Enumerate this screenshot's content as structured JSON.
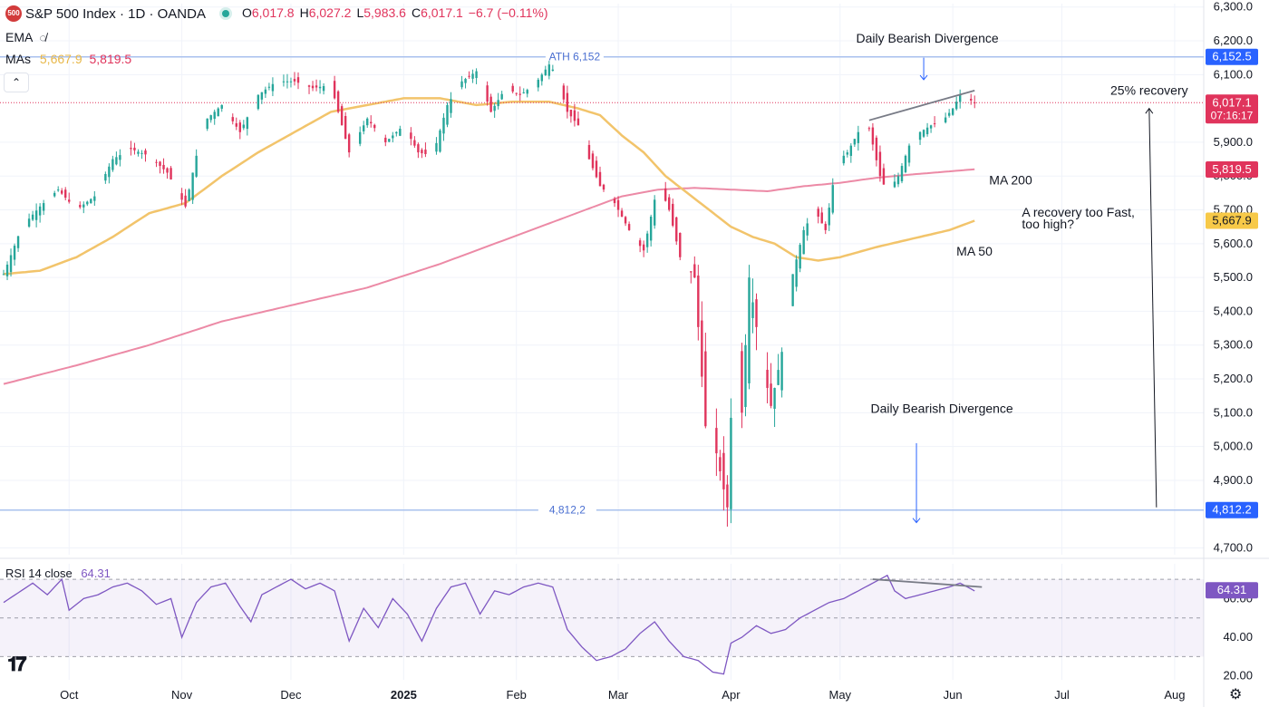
{
  "header": {
    "symbol_badge": "500",
    "title": "S&P 500 Index · 1D · OANDA",
    "ohlc": [
      {
        "label": "O",
        "value": "6,017.8"
      },
      {
        "label": "H",
        "value": "6,027.2"
      },
      {
        "label": "L",
        "value": "5,983.6"
      },
      {
        "label": "C",
        "value": "6,017.1"
      }
    ],
    "change": "−6.7 (−0.11%)",
    "ema_label": "EMA",
    "mas_label": "MAs",
    "ma50_value": "5,667.9",
    "ma200_value": "5,819.5",
    "rsi_label": "RSI 14 close",
    "rsi_value": "64.31"
  },
  "colors": {
    "up": "#26a69a",
    "down": "#e0345c",
    "ma50": "#f2c46b",
    "ma200": "#ec8aa6",
    "rsi_line": "#7e57c2",
    "level_line": "#a9c1ee",
    "badge_blue": "#2962ff",
    "badge_red": "#e0345c",
    "badge_yellow": "#f7c948",
    "badge_purple": "#7e57c2"
  },
  "chart_data": {
    "type": "candlestick",
    "price_axis": {
      "ticks": [
        "6,300.0",
        "6,200.0",
        "6,100.0",
        "5,900.0",
        "5,800.0",
        "5,700.0",
        "5,600.0",
        "5,500.0",
        "5,400.0",
        "5,300.0",
        "5,200.0",
        "5,100.0",
        "5,000.0",
        "4,900.0",
        "4,700.0"
      ],
      "tick_values": [
        6300,
        6200,
        6100,
        5900,
        5800,
        5700,
        5600,
        5500,
        5400,
        5300,
        5200,
        5100,
        5000,
        4900,
        4700
      ],
      "range": [
        4680,
        6310
      ]
    },
    "time_axis": {
      "labels": [
        {
          "text": "Oct",
          "day": 18
        },
        {
          "text": "Nov",
          "day": 49
        },
        {
          "text": "Dec",
          "day": 79
        },
        {
          "text": "2025",
          "day": 110,
          "bold": true
        },
        {
          "text": "Feb",
          "day": 141
        },
        {
          "text": "Mar",
          "day": 169
        },
        {
          "text": "Apr",
          "day": 200
        },
        {
          "text": "May",
          "day": 230
        },
        {
          "text": "Jun",
          "day": 261
        },
        {
          "text": "Jul",
          "day": 291
        },
        {
          "text": "Aug",
          "day": 322
        }
      ],
      "range_days": [
        -1,
        330
      ]
    },
    "price_badges": [
      {
        "value": "6,152.5",
        "price": 6152.5,
        "color": "blue"
      },
      {
        "value": "6,017.1",
        "price": 6017.1,
        "sub": "07:16:17",
        "color": "red"
      },
      {
        "value": "5,819.5",
        "price": 5819.5,
        "color": "red"
      },
      {
        "value": "5,667.9",
        "price": 5667.9,
        "color": "yellow"
      },
      {
        "value": "4,812.2",
        "price": 4812.2,
        "color": "blue"
      }
    ],
    "levels": [
      {
        "label": "ATH 6,152",
        "price": 6152.5
      },
      {
        "label": "4,812,2",
        "price": 4812.2
      }
    ],
    "annotations": {
      "div_top": "Daily Bearish Divergence",
      "div_bottom": "Daily Bearish Divergence",
      "recovery": "25% recovery",
      "ma200": "MA 200",
      "ma50": "MA 50",
      "question_line1": "A recovery too Fast,",
      "question_line2": "too high?"
    },
    "close_anchors": [
      [
        0,
        5510
      ],
      [
        5,
        5650
      ],
      [
        10,
        5710
      ],
      [
        15,
        5760
      ],
      [
        20,
        5700
      ],
      [
        25,
        5740
      ],
      [
        30,
        5850
      ],
      [
        35,
        5880
      ],
      [
        40,
        5860
      ],
      [
        45,
        5810
      ],
      [
        50,
        5710
      ],
      [
        55,
        5960
      ],
      [
        60,
        6010
      ],
      [
        65,
        5930
      ],
      [
        70,
        6040
      ],
      [
        75,
        6080
      ],
      [
        80,
        6080
      ],
      [
        85,
        6060
      ],
      [
        90,
        6070
      ],
      [
        95,
        5870
      ],
      [
        100,
        5970
      ],
      [
        105,
        5900
      ],
      [
        110,
        5950
      ],
      [
        114,
        5870
      ],
      [
        118,
        5860
      ],
      [
        122,
        6010
      ],
      [
        126,
        6080
      ],
      [
        130,
        6110
      ],
      [
        134,
        5990
      ],
      [
        138,
        6060
      ],
      [
        142,
        6040
      ],
      [
        146,
        6070
      ],
      [
        150,
        6130
      ],
      [
        152,
        6100
      ],
      [
        155,
        5990
      ],
      [
        158,
        5950
      ],
      [
        161,
        5850
      ],
      [
        164,
        5770
      ],
      [
        167,
        5740
      ],
      [
        170,
        5680
      ],
      [
        173,
        5620
      ],
      [
        176,
        5580
      ],
      [
        180,
        5780
      ],
      [
        183,
        5700
      ],
      [
        186,
        5560
      ],
      [
        190,
        5500
      ],
      [
        193,
        5060
      ],
      [
        196,
        4980
      ],
      [
        199,
        4820
      ],
      [
        201,
        5350
      ],
      [
        203,
        5100
      ],
      [
        205,
        5500
      ],
      [
        208,
        5280
      ],
      [
        211,
        5120
      ],
      [
        214,
        5280
      ],
      [
        217,
        5510
      ],
      [
        220,
        5640
      ],
      [
        223,
        5700
      ],
      [
        226,
        5640
      ],
      [
        229,
        5840
      ],
      [
        232,
        5870
      ],
      [
        235,
        5930
      ],
      [
        238,
        5940
      ],
      [
        241,
        5800
      ],
      [
        243,
        5750
      ],
      [
        246,
        5800
      ],
      [
        249,
        5890
      ],
      [
        252,
        5930
      ],
      [
        255,
        5950
      ],
      [
        258,
        5960
      ],
      [
        261,
        6000
      ],
      [
        263,
        6040
      ],
      [
        265,
        6030
      ],
      [
        267,
        6017
      ]
    ],
    "ma50_anchors": [
      [
        0,
        5510
      ],
      [
        10,
        5520
      ],
      [
        20,
        5560
      ],
      [
        30,
        5620
      ],
      [
        40,
        5690
      ],
      [
        50,
        5720
      ],
      [
        60,
        5800
      ],
      [
        70,
        5870
      ],
      [
        80,
        5930
      ],
      [
        90,
        5990
      ],
      [
        100,
        6010
      ],
      [
        110,
        6030
      ],
      [
        120,
        6030
      ],
      [
        130,
        6010
      ],
      [
        140,
        6020
      ],
      [
        150,
        6020
      ],
      [
        158,
        6000
      ],
      [
        164,
        5980
      ],
      [
        170,
        5920
      ],
      [
        176,
        5870
      ],
      [
        182,
        5800
      ],
      [
        188,
        5750
      ],
      [
        194,
        5700
      ],
      [
        200,
        5650
      ],
      [
        206,
        5620
      ],
      [
        212,
        5600
      ],
      [
        218,
        5560
      ],
      [
        224,
        5550
      ],
      [
        230,
        5560
      ],
      [
        240,
        5590
      ],
      [
        250,
        5615
      ],
      [
        260,
        5640
      ],
      [
        267,
        5668
      ]
    ],
    "ma200_anchors": [
      [
        0,
        5185
      ],
      [
        20,
        5240
      ],
      [
        40,
        5300
      ],
      [
        60,
        5370
      ],
      [
        80,
        5420
      ],
      [
        100,
        5470
      ],
      [
        120,
        5540
      ],
      [
        140,
        5620
      ],
      [
        160,
        5700
      ],
      [
        170,
        5740
      ],
      [
        180,
        5760
      ],
      [
        190,
        5765
      ],
      [
        200,
        5760
      ],
      [
        210,
        5755
      ],
      [
        220,
        5770
      ],
      [
        230,
        5780
      ],
      [
        240,
        5795
      ],
      [
        250,
        5805
      ],
      [
        267,
        5820
      ]
    ],
    "rsi": {
      "axis_ticks": [
        "60.00",
        "40.00",
        "20.00"
      ],
      "tick_values": [
        60,
        40,
        20
      ],
      "range": [
        18,
        78
      ],
      "overbought": 70,
      "oversold": 30,
      "mid": 50,
      "anchors": [
        [
          0,
          58
        ],
        [
          4,
          63
        ],
        [
          8,
          68
        ],
        [
          12,
          62
        ],
        [
          16,
          70
        ],
        [
          18,
          54
        ],
        [
          22,
          60
        ],
        [
          26,
          62
        ],
        [
          30,
          66
        ],
        [
          34,
          68
        ],
        [
          38,
          64
        ],
        [
          42,
          57
        ],
        [
          46,
          60
        ],
        [
          49,
          40
        ],
        [
          53,
          58
        ],
        [
          57,
          66
        ],
        [
          61,
          68
        ],
        [
          65,
          56
        ],
        [
          68,
          48
        ],
        [
          71,
          62
        ],
        [
          75,
          66
        ],
        [
          79,
          70
        ],
        [
          83,
          65
        ],
        [
          87,
          68
        ],
        [
          91,
          64
        ],
        [
          95,
          38
        ],
        [
          99,
          55
        ],
        [
          103,
          45
        ],
        [
          107,
          60
        ],
        [
          111,
          52
        ],
        [
          115,
          38
        ],
        [
          119,
          55
        ],
        [
          123,
          66
        ],
        [
          127,
          68
        ],
        [
          131,
          52
        ],
        [
          135,
          64
        ],
        [
          139,
          62
        ],
        [
          143,
          66
        ],
        [
          147,
          68
        ],
        [
          151,
          66
        ],
        [
          155,
          44
        ],
        [
          159,
          35
        ],
        [
          163,
          28
        ],
        [
          167,
          30
        ],
        [
          171,
          34
        ],
        [
          175,
          42
        ],
        [
          179,
          48
        ],
        [
          183,
          38
        ],
        [
          187,
          30
        ],
        [
          191,
          28
        ],
        [
          195,
          22
        ],
        [
          198,
          21
        ],
        [
          200,
          37
        ],
        [
          203,
          40
        ],
        [
          207,
          46
        ],
        [
          211,
          42
        ],
        [
          215,
          44
        ],
        [
          219,
          50
        ],
        [
          223,
          54
        ],
        [
          227,
          58
        ],
        [
          231,
          60
        ],
        [
          235,
          64
        ],
        [
          239,
          68
        ],
        [
          243,
          72
        ],
        [
          245,
          64
        ],
        [
          248,
          60
        ],
        [
          252,
          62
        ],
        [
          256,
          64
        ],
        [
          260,
          66
        ],
        [
          263,
          68
        ],
        [
          267,
          64
        ]
      ]
    }
  }
}
